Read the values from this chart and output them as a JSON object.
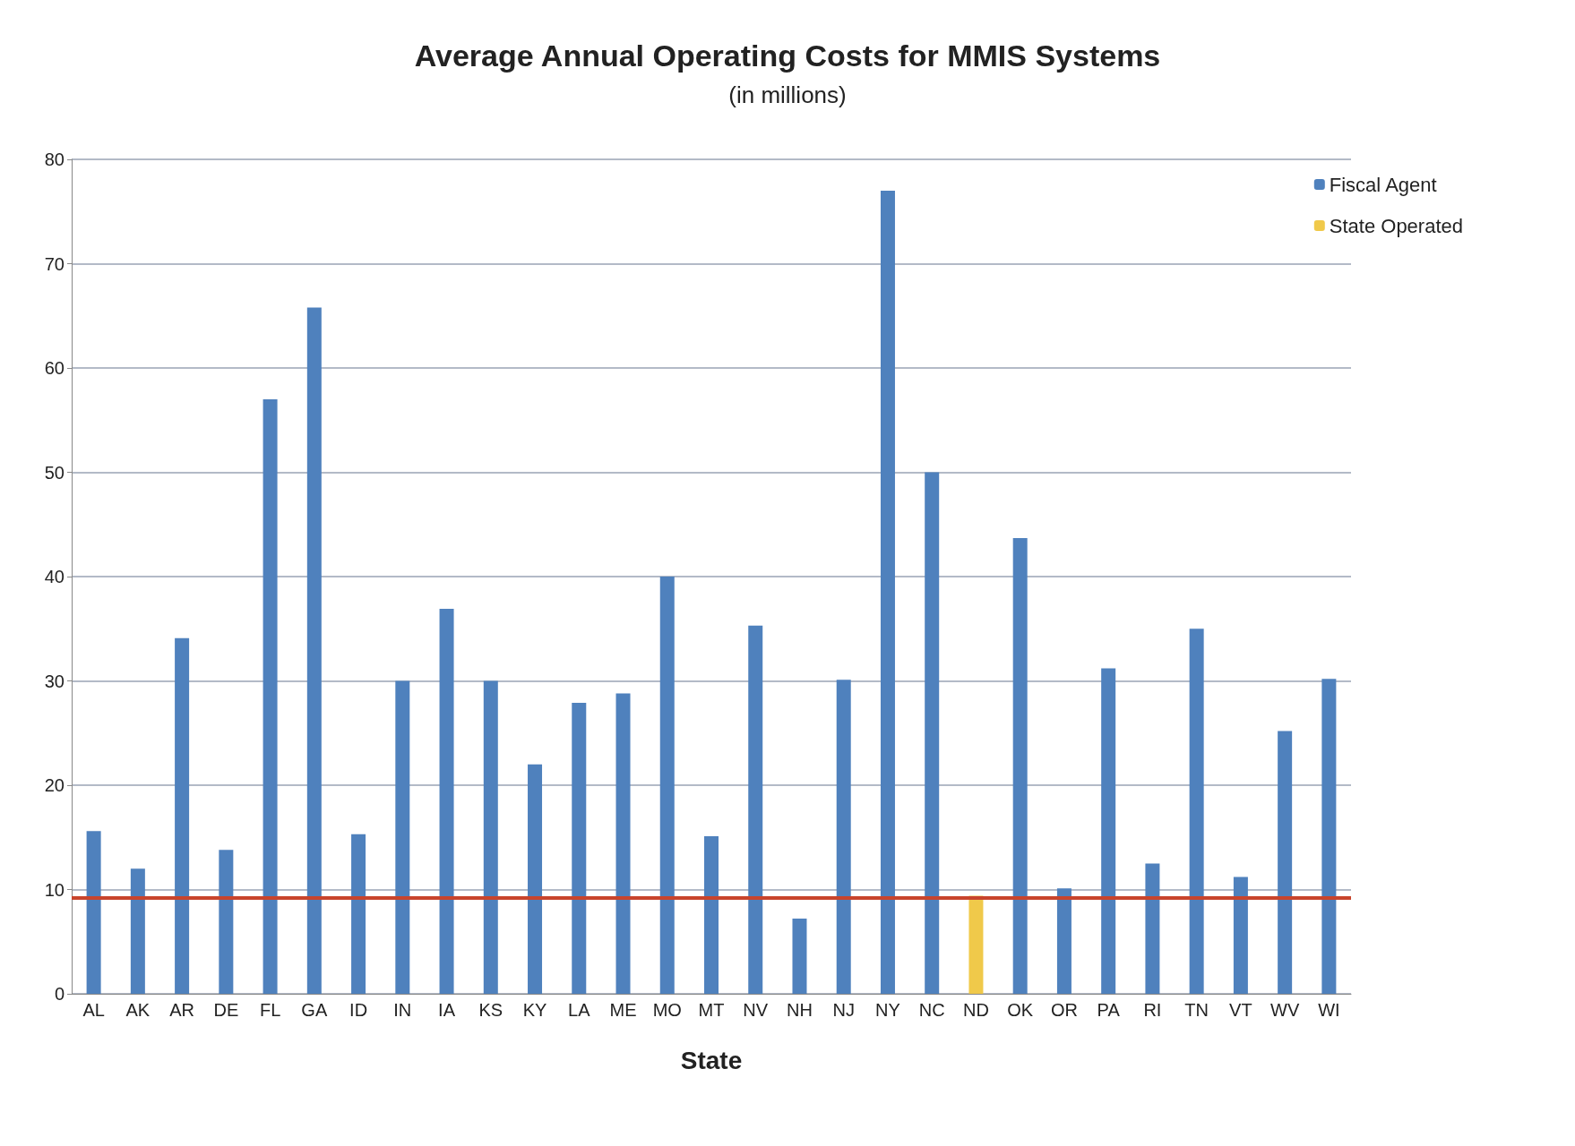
{
  "chart_data": {
    "type": "bar",
    "title": "Average Annual Operating Costs for MMIS Systems",
    "subtitle": "(in millions)",
    "xlabel": "State",
    "categories": [
      "AL",
      "AK",
      "AR",
      "DE",
      "FL",
      "GA",
      "ID",
      "IN",
      "IA",
      "KS",
      "KY",
      "LA",
      "ME",
      "MO",
      "MT",
      "NV",
      "NH",
      "NJ",
      "NY",
      "NC",
      "ND",
      "OK",
      "OR",
      "PA",
      "RI",
      "TN",
      "VT",
      "WV",
      "WI"
    ],
    "series": [
      {
        "name": "Fiscal Agent",
        "color": "#4f81bd",
        "values": [
          15.6,
          12.0,
          34.1,
          13.8,
          57.0,
          65.8,
          15.3,
          30.0,
          36.9,
          30.0,
          22.0,
          27.9,
          28.8,
          40.0,
          15.1,
          35.3,
          7.2,
          30.1,
          77.0,
          50.0,
          null,
          43.7,
          10.1,
          31.2,
          12.5,
          35.0,
          11.2,
          25.2,
          30.2
        ]
      },
      {
        "name": "State Operated",
        "color": "#f0c94a",
        "values": [
          null,
          null,
          null,
          null,
          null,
          null,
          null,
          null,
          null,
          null,
          null,
          null,
          null,
          null,
          null,
          null,
          null,
          null,
          null,
          null,
          9.4,
          null,
          null,
          null,
          null,
          null,
          null,
          null,
          null
        ]
      }
    ],
    "ylim": [
      0,
      80
    ],
    "yticks": [
      0,
      10,
      20,
      30,
      40,
      50,
      60,
      70,
      80
    ],
    "grid": "y",
    "legend": "top right",
    "ref_lines": [
      {
        "axis": "y",
        "value": 9.2,
        "color": "#c8442c"
      }
    ]
  }
}
